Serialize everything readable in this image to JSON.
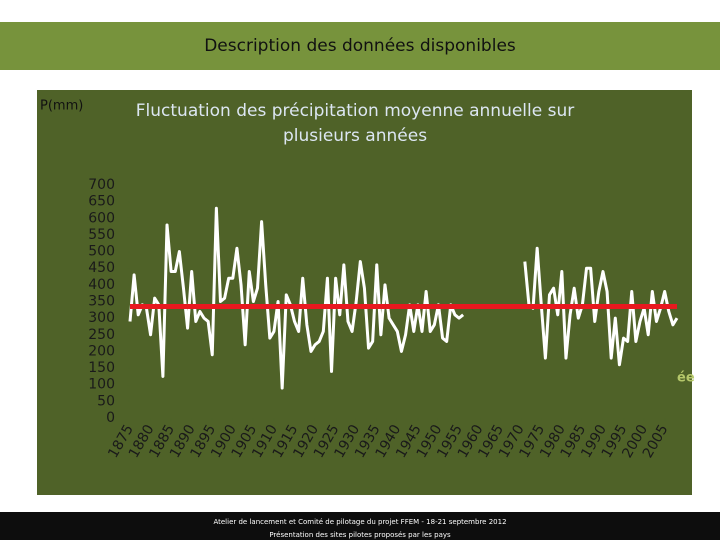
{
  "header": {
    "title": "Description des données disponibles"
  },
  "chart_data": {
    "type": "line",
    "title": [
      "Fluctuation des précipitation moyenne annuelle sur",
      "plusieurs années"
    ],
    "ylabel": "P(mm)",
    "xlabel": "ée",
    "x": [
      1875,
      1876,
      1877,
      1878,
      1879,
      1880,
      1881,
      1882,
      1883,
      1884,
      1885,
      1886,
      1887,
      1888,
      1889,
      1890,
      1891,
      1892,
      1893,
      1894,
      1895,
      1896,
      1897,
      1898,
      1899,
      1900,
      1901,
      1902,
      1903,
      1904,
      1905,
      1906,
      1907,
      1908,
      1909,
      1910,
      1911,
      1912,
      1913,
      1914,
      1915,
      1916,
      1917,
      1918,
      1919,
      1920,
      1921,
      1922,
      1923,
      1924,
      1925,
      1926,
      1927,
      1928,
      1929,
      1930,
      1931,
      1932,
      1933,
      1934,
      1935,
      1936,
      1937,
      1938,
      1939,
      1940,
      1941,
      1942,
      1943,
      1944,
      1945,
      1946,
      1947,
      1948,
      1949,
      1950,
      1951,
      1952,
      1953,
      1954,
      1955,
      1956,
      1957,
      1958,
      1959,
      1960,
      1961,
      1962,
      1963,
      1964,
      1965,
      1966,
      1967,
      1968,
      1969,
      1970,
      1971,
      1972,
      1973,
      1974,
      1975,
      1976,
      1977,
      1978,
      1979,
      1980,
      1981,
      1982,
      1983,
      1984,
      1985,
      1986,
      1987,
      1988,
      1989,
      1990,
      1991,
      1992,
      1993,
      1994,
      1995,
      1996,
      1997,
      1998,
      1999,
      2000,
      2001,
      2002,
      2003,
      2004,
      2005,
      2006,
      2007,
      2008
    ],
    "series": [
      {
        "color": "#ffffff",
        "values": [
          290,
          430,
          310,
          340,
          330,
          250,
          360,
          340,
          125,
          580,
          440,
          440,
          500,
          390,
          270,
          440,
          290,
          320,
          300,
          290,
          190,
          630,
          350,
          360,
          420,
          420,
          510,
          400,
          220,
          440,
          350,
          390,
          590,
          400,
          240,
          260,
          350,
          90,
          370,
          340,
          290,
          260,
          420,
          280,
          200,
          220,
          230,
          260,
          420,
          140,
          420,
          310,
          460,
          290,
          260,
          350,
          470,
          390,
          210,
          230,
          460,
          250,
          400,
          300,
          280,
          260,
          200,
          250,
          340,
          260,
          340,
          260,
          380,
          260,
          280,
          340,
          240,
          230,
          340,
          310,
          300,
          310,
          null,
          null,
          null,
          null,
          null,
          null,
          null,
          null,
          null,
          null,
          null,
          null,
          null,
          null,
          470,
          340,
          330,
          510,
          340,
          180,
          370,
          390,
          310,
          440,
          180,
          310,
          390,
          300,
          340,
          450,
          450,
          290,
          380,
          440,
          380,
          180,
          300,
          160,
          240,
          230,
          380,
          230,
          290,
          330,
          250,
          380,
          290,
          330,
          380,
          320,
          280,
          300
        ]
      }
    ],
    "reference_line": {
      "value": 335,
      "color": "#e8191f"
    },
    "xlim": [
      1875,
      2008
    ],
    "xticks": [
      1875,
      1880,
      1885,
      1890,
      1895,
      1900,
      1905,
      1910,
      1915,
      1920,
      1925,
      1930,
      1935,
      1940,
      1945,
      1950,
      1955,
      1960,
      1965,
      1970,
      1975,
      1980,
      1985,
      1990,
      1995,
      2000,
      2005
    ],
    "ylim": [
      0,
      700
    ],
    "yticks": [
      0,
      50,
      100,
      150,
      200,
      250,
      300,
      350,
      400,
      450,
      500,
      550,
      600,
      650,
      700
    ]
  },
  "footer": {
    "line1": "Atelier de lancement et Comité de pilotage du projet FFEM  -  18-21 septembre 2012",
    "line2": "Présentation des sites pilotes proposés par les pays"
  }
}
